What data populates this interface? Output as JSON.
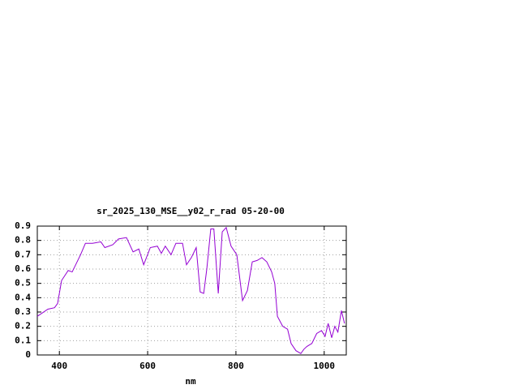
{
  "chart_data": {
    "type": "line",
    "title": "sr_2025_130_MSE__y02_r_rad 05-20-00",
    "x_label": "nm",
    "x": [
      350,
      374,
      389,
      396,
      405,
      420,
      429,
      448,
      459,
      475,
      494,
      503,
      521,
      534,
      552,
      567,
      580,
      591,
      606,
      622,
      631,
      640,
      653,
      664,
      679,
      688,
      699,
      710,
      719,
      727,
      734,
      743,
      750,
      760,
      769,
      778,
      789,
      802,
      815,
      826,
      837,
      848,
      859,
      870,
      881,
      888,
      894,
      906,
      917,
      925,
      936,
      947,
      954,
      961,
      972,
      983,
      994,
      1002,
      1009,
      1017,
      1024,
      1031,
      1039,
      1046
    ],
    "series": [
      {
        "color": "#9400d3",
        "values": [
          0.27,
          0.32,
          0.33,
          0.36,
          0.52,
          0.59,
          0.58,
          0.7,
          0.78,
          0.78,
          0.79,
          0.75,
          0.77,
          0.81,
          0.82,
          0.72,
          0.74,
          0.63,
          0.75,
          0.76,
          0.71,
          0.76,
          0.7,
          0.78,
          0.78,
          0.63,
          0.68,
          0.75,
          0.44,
          0.43,
          0.6,
          0.88,
          0.88,
          0.43,
          0.86,
          0.89,
          0.76,
          0.7,
          0.38,
          0.45,
          0.65,
          0.66,
          0.68,
          0.65,
          0.58,
          0.5,
          0.27,
          0.2,
          0.18,
          0.08,
          0.03,
          0.01,
          0.04,
          0.06,
          0.08,
          0.15,
          0.17,
          0.13,
          0.22,
          0.12,
          0.2,
          0.16,
          0.31,
          0.22
        ]
      }
    ],
    "xlim": [
      350,
      1050
    ],
    "xticks": [
      400,
      600,
      800,
      1000
    ],
    "ylim": [
      0,
      0.9
    ],
    "yticks": [
      0,
      0.1,
      0.2,
      0.3,
      0.4,
      0.5,
      0.6,
      0.7,
      0.8,
      0.9
    ],
    "grid": true
  }
}
